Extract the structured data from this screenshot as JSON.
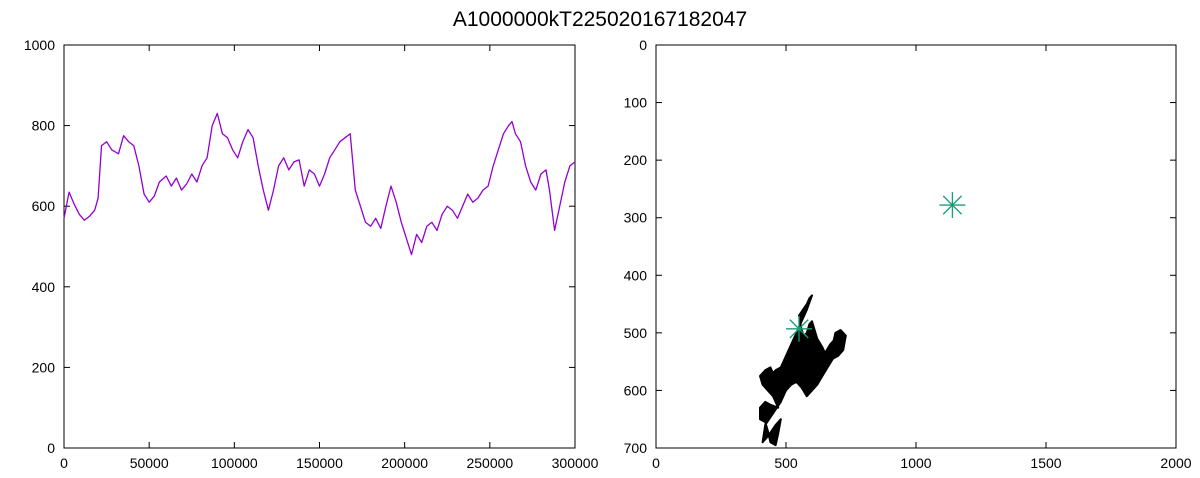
{
  "figure_title": "A1000000kT225020167182047",
  "chart_data": [
    {
      "type": "line",
      "title": "",
      "xlabel": "",
      "ylabel": "",
      "xlim": [
        0,
        300000
      ],
      "ylim": [
        0,
        1000
      ],
      "xticks": [
        0,
        50000,
        100000,
        150000,
        200000,
        250000,
        300000
      ],
      "xtick_labels": [
        "0",
        "50000",
        "100000",
        "150000",
        "200000",
        "250000",
        "300000"
      ],
      "yticks": [
        0,
        200,
        400,
        600,
        800,
        1000
      ],
      "ytick_labels": [
        "0",
        "200",
        "400",
        "600",
        "800",
        "1000"
      ],
      "grid": false,
      "series": [
        {
          "color": "#9400d3",
          "x": [
            0,
            3000,
            6000,
            9000,
            12000,
            15000,
            18000,
            20000,
            22000,
            25000,
            28000,
            32000,
            35000,
            38000,
            41000,
            44000,
            47000,
            50000,
            53000,
            56000,
            60000,
            63000,
            66000,
            69000,
            72000,
            75000,
            78000,
            81000,
            84000,
            87000,
            90000,
            93000,
            96000,
            99000,
            102000,
            105000,
            108000,
            111000,
            114000,
            117000,
            120000,
            123000,
            126000,
            129000,
            132000,
            135000,
            138000,
            141000,
            144000,
            147000,
            150000,
            153000,
            156000,
            159000,
            162000,
            165000,
            168000,
            171000,
            174000,
            177000,
            180000,
            183000,
            186000,
            189000,
            192000,
            195000,
            198000,
            201000,
            204000,
            207000,
            210000,
            213000,
            216000,
            219000,
            222000,
            225000,
            228000,
            231000,
            234000,
            237000,
            240000,
            243000,
            246000,
            249000,
            252000,
            255000,
            258000,
            261000,
            263000,
            265000,
            268000,
            271000,
            274000,
            277000,
            280000,
            283000,
            285000,
            288000,
            291000,
            294000,
            297000,
            300000
          ],
          "y": [
            570,
            635,
            605,
            580,
            565,
            575,
            590,
            620,
            750,
            760,
            740,
            730,
            775,
            760,
            750,
            700,
            630,
            610,
            625,
            660,
            675,
            650,
            670,
            640,
            655,
            680,
            660,
            700,
            720,
            800,
            830,
            780,
            770,
            740,
            720,
            760,
            790,
            770,
            700,
            640,
            590,
            640,
            700,
            720,
            690,
            710,
            715,
            650,
            690,
            680,
            650,
            680,
            720,
            740,
            760,
            770,
            780,
            640,
            600,
            560,
            550,
            570,
            545,
            600,
            650,
            610,
            560,
            520,
            480,
            530,
            510,
            550,
            560,
            540,
            580,
            600,
            590,
            570,
            600,
            630,
            610,
            620,
            640,
            650,
            700,
            740,
            780,
            800,
            810,
            780,
            760,
            700,
            660,
            640,
            680,
            690,
            640,
            540,
            600,
            660,
            700,
            710
          ]
        }
      ]
    },
    {
      "type": "scatter",
      "title": "",
      "xlabel": "",
      "ylabel": "",
      "xlim": [
        0,
        2000
      ],
      "ylim": [
        700,
        0
      ],
      "y_axis_inverted": true,
      "xticks": [
        0,
        500,
        1000,
        1500,
        2000
      ],
      "xtick_labels": [
        "0",
        "500",
        "1000",
        "1500",
        "2000"
      ],
      "yticks": [
        0,
        100,
        200,
        300,
        400,
        500,
        600,
        700
      ],
      "ytick_labels": [
        "0",
        "100",
        "200",
        "300",
        "400",
        "500",
        "600",
        "700"
      ],
      "grid": false,
      "series": [
        {
          "color": "#000000",
          "marker": "path-cluster",
          "x": [
            560,
            550,
            580,
            590,
            600,
            580,
            560,
            540,
            520,
            500,
            480,
            460,
            450,
            440,
            420,
            400,
            410,
            430,
            450,
            470,
            440,
            420,
            400,
            400,
            420,
            430,
            440,
            460,
            470,
            480,
            460,
            430,
            410,
            420,
            450,
            480,
            500,
            520,
            540,
            560,
            580,
            600,
            620,
            640,
            660,
            680,
            700,
            720,
            730,
            710,
            690,
            680,
            700,
            720,
            710,
            690,
            670,
            650,
            640,
            620,
            610,
            600,
            590,
            580,
            570,
            560
          ],
          "y": [
            495,
            470,
            450,
            440,
            435,
            460,
            480,
            500,
            520,
            540,
            560,
            565,
            570,
            560,
            565,
            575,
            590,
            600,
            610,
            630,
            625,
            620,
            630,
            650,
            655,
            670,
            690,
            695,
            675,
            650,
            660,
            680,
            690,
            660,
            640,
            620,
            600,
            590,
            585,
            595,
            610,
            600,
            590,
            575,
            560,
            545,
            540,
            530,
            505,
            495,
            500,
            520,
            540,
            530,
            515,
            510,
            520,
            535,
            525,
            510,
            495,
            480,
            485,
            500,
            505,
            495
          ]
        },
        {
          "color": "#1a9e77",
          "marker": "star",
          "x": [
            550,
            1140
          ],
          "y": [
            493,
            278
          ]
        }
      ]
    }
  ]
}
